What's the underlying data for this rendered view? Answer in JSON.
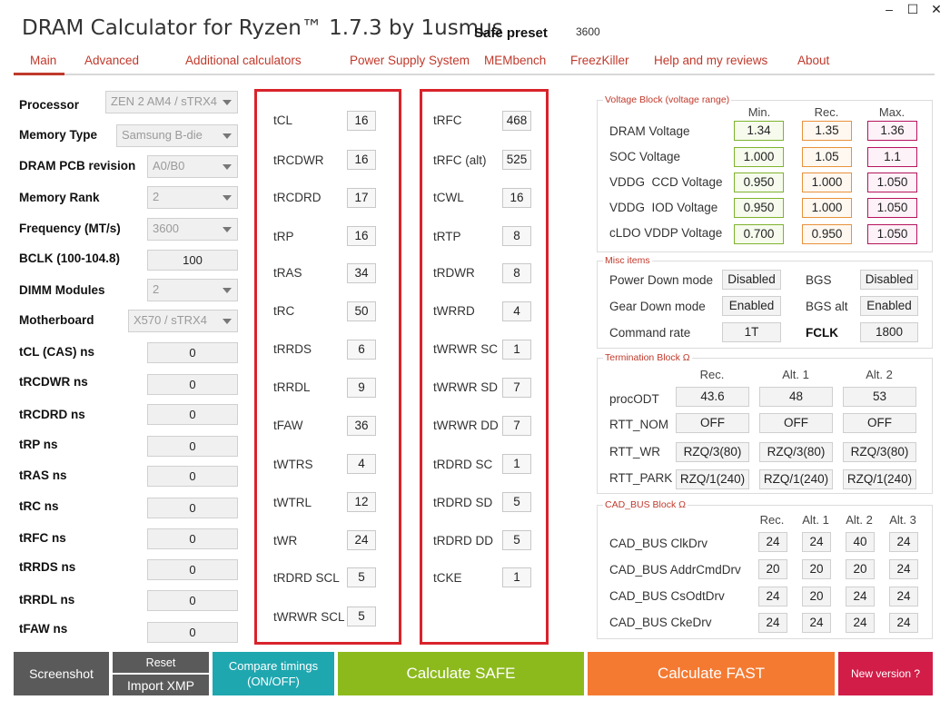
{
  "window": {
    "minimize": "–",
    "maximize": "☐",
    "close": "✕"
  },
  "app": {
    "title": "DRAM Calculator for Ryzen™ 1.7.3 by 1usmus",
    "preset_label": "Safe preset",
    "preset_value": "3600"
  },
  "nav": [
    "Main",
    "Advanced",
    "Additional calculators",
    "Power Supply System",
    "MEMbench",
    "FreezKiller",
    "Help and my reviews",
    "About"
  ],
  "left": {
    "selects": [
      {
        "label": "Processor",
        "value": "ZEN 2 AM4 / sTRX4"
      },
      {
        "label": "Memory Type",
        "value": "Samsung B-die"
      },
      {
        "label": "DRAM PCB revision",
        "value": "A0/B0"
      },
      {
        "label": "Memory Rank",
        "value": "2"
      },
      {
        "label": "Frequency (MT/s)",
        "value": "3600"
      },
      {
        "label": "BCLK (100-104.8)",
        "value": "100"
      },
      {
        "label": "DIMM Modules",
        "value": "2"
      },
      {
        "label": "Motherboard",
        "value": "X570 / sTRX4"
      }
    ],
    "ns_fields": [
      {
        "label": "tCL (CAS) ns",
        "value": "0"
      },
      {
        "label": "tRCDWR ns",
        "value": "0"
      },
      {
        "label": "tRCDRD ns",
        "value": "0"
      },
      {
        "label": "tRP ns",
        "value": "0"
      },
      {
        "label": "tRAS ns",
        "value": "0"
      },
      {
        "label": "tRC ns",
        "value": "0"
      },
      {
        "label": "tRFC ns",
        "value": "0"
      },
      {
        "label": "tRRDS ns",
        "value": "0"
      },
      {
        "label": "tRRDL ns",
        "value": "0"
      },
      {
        "label": "tFAW ns",
        "value": "0"
      }
    ]
  },
  "timings_col1": [
    {
      "label": "tCL",
      "value": "16"
    },
    {
      "label": "tRCDWR",
      "value": "16"
    },
    {
      "label": "tRCDRD",
      "value": "17"
    },
    {
      "label": "tRP",
      "value": "16"
    },
    {
      "label": "tRAS",
      "value": "34"
    },
    {
      "label": "tRC",
      "value": "50"
    },
    {
      "label": "tRRDS",
      "value": "6"
    },
    {
      "label": "tRRDL",
      "value": "9"
    },
    {
      "label": "tFAW",
      "value": "36"
    },
    {
      "label": "tWTRS",
      "value": "4"
    },
    {
      "label": "tWTRL",
      "value": "12"
    },
    {
      "label": "tWR",
      "value": "24"
    },
    {
      "label": "tRDRD SCL",
      "value": "5"
    },
    {
      "label": "tWRWR SCL",
      "value": "5"
    }
  ],
  "timings_col2": [
    {
      "label": "tRFC",
      "value": "468"
    },
    {
      "label": "tRFC (alt)",
      "value": "525"
    },
    {
      "label": "tCWL",
      "value": "16"
    },
    {
      "label": "tRTP",
      "value": "8"
    },
    {
      "label": "tRDWR",
      "value": "8"
    },
    {
      "label": "tWRRD",
      "value": "4"
    },
    {
      "label": "tWRWR SC",
      "value": "1"
    },
    {
      "label": "tWRWR SD",
      "value": "7"
    },
    {
      "label": "tWRWR DD",
      "value": "7"
    },
    {
      "label": "tRDRD SC",
      "value": "1"
    },
    {
      "label": "tRDRD SD",
      "value": "5"
    },
    {
      "label": "tRDRD DD",
      "value": "5"
    },
    {
      "label": "tCKE",
      "value": "1"
    }
  ],
  "voltage": {
    "title": "Voltage Block (voltage range)",
    "headers": [
      "Min.",
      "Rec.",
      "Max."
    ],
    "rows": [
      {
        "label": "DRAM Voltage",
        "min": "1.34",
        "rec": "1.35",
        "max": "1.36"
      },
      {
        "label": "SOC Voltage",
        "min": "1.000",
        "rec": "1.05",
        "max": "1.1"
      },
      {
        "label": "VDDG  CCD Voltage",
        "min": "0.950",
        "rec": "1.000",
        "max": "1.050"
      },
      {
        "label": "VDDG  IOD Voltage",
        "min": "0.950",
        "rec": "1.000",
        "max": "1.050"
      },
      {
        "label": "cLDO VDDP Voltage",
        "min": "0.700",
        "rec": "0.950",
        "max": "1.050"
      }
    ]
  },
  "misc": {
    "title": "Misc items",
    "power_down_label": "Power Down mode",
    "power_down_value": "Disabled",
    "bgs_label": "BGS",
    "bgs_value": "Disabled",
    "gear_down_label": "Gear Down mode",
    "gear_down_value": "Enabled",
    "bgs_alt_label": "BGS alt",
    "bgs_alt_value": "Enabled",
    "command_rate_label": "Command rate",
    "command_rate_value": "1T",
    "fclk_label": "FCLK",
    "fclk_value": "1800"
  },
  "termination": {
    "title": "Termination Block Ω",
    "headers": [
      "Rec.",
      "Alt. 1",
      "Alt. 2"
    ],
    "rows": [
      {
        "label": "procODT",
        "values": [
          "43.6",
          "48",
          "53"
        ]
      },
      {
        "label": "RTT_NOM",
        "values": [
          "OFF",
          "OFF",
          "OFF"
        ]
      },
      {
        "label": "RTT_WR",
        "values": [
          "RZQ/3(80)",
          "RZQ/3(80)",
          "RZQ/3(80)"
        ]
      },
      {
        "label": "RTT_PARK",
        "values": [
          "RZQ/1(240)",
          "RZQ/1(240)",
          "RZQ/1(240)"
        ]
      }
    ]
  },
  "cadbus": {
    "title": "CAD_BUS Block Ω",
    "headers": [
      "Rec.",
      "Alt. 1",
      "Alt. 2",
      "Alt. 3"
    ],
    "rows": [
      {
        "label": "CAD_BUS ClkDrv",
        "values": [
          "24",
          "24",
          "40",
          "24"
        ]
      },
      {
        "label": "CAD_BUS AddrCmdDrv",
        "values": [
          "20",
          "20",
          "20",
          "24"
        ]
      },
      {
        "label": "CAD_BUS CsOdtDrv",
        "values": [
          "24",
          "20",
          "24",
          "24"
        ]
      },
      {
        "label": "CAD_BUS CkeDrv",
        "values": [
          "24",
          "24",
          "24",
          "24"
        ]
      }
    ]
  },
  "buttons": {
    "screenshot": "Screenshot",
    "reset": "Reset",
    "import_xmp": "Import XMP",
    "compare_line1": "Compare timings",
    "compare_line2": "(ON/OFF)",
    "calc_safe": "Calculate SAFE",
    "calc_fast": "Calculate FAST",
    "new_version": "New version ?"
  },
  "colors": {
    "accent_red": "#c0392b",
    "box_red": "#d9232b",
    "btn_gray": "#5a5a5a",
    "btn_teal": "#1fa7b0",
    "btn_green": "#8cba1d",
    "btn_orange": "#f47a32",
    "btn_crimson": "#d11d48"
  }
}
